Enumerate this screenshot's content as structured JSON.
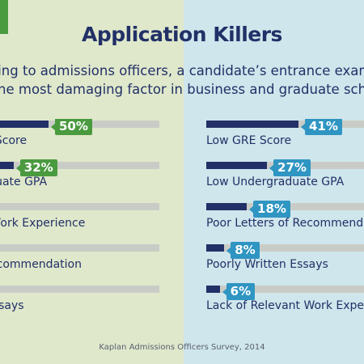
{
  "header": {
    "title": "Application Killers",
    "subtitle_line1": "According to admissions officers, a candidate’s entrance exam score",
    "subtitle_line2": "is the most damaging factor in business and graduate school admissions"
  },
  "source": "Kaplan Admissions Officers Survey, 2014",
  "colors": {
    "left_background": "#dfe8cb",
    "right_background": "#cfe6ec",
    "bar_fill": "#223067",
    "bar_track": "#c9ccc6",
    "left_badge": "#4a9a3f",
    "right_badge": "#2f95c2",
    "text": "#223067"
  },
  "chart_data": [
    {
      "type": "bar",
      "orientation": "horizontal",
      "panel": "left",
      "categories": [
        "GRE Score",
        "Graduate GPA",
        "ant Work Experience",
        "of Recommendation",
        "en Essays"
      ],
      "values": [
        50,
        32,
        null,
        null,
        null
      ],
      "value_labels": [
        "50%",
        "32%",
        "",
        "",
        ""
      ],
      "unit": "%",
      "xlim": [
        0,
        100
      ]
    },
    {
      "type": "bar",
      "orientation": "horizontal",
      "panel": "right",
      "categories": [
        "Low GRE Score",
        "Low Undergraduate GPA",
        "Poor Letters of Recommendatio",
        "Poorly Written Essays",
        "Lack of Relevant Work Experie"
      ],
      "values": [
        41,
        27,
        18,
        8,
        6
      ],
      "value_labels": [
        "41%",
        "27%",
        "18%",
        "8%",
        "6%"
      ],
      "unit": "%",
      "xlim": [
        0,
        100
      ]
    }
  ]
}
